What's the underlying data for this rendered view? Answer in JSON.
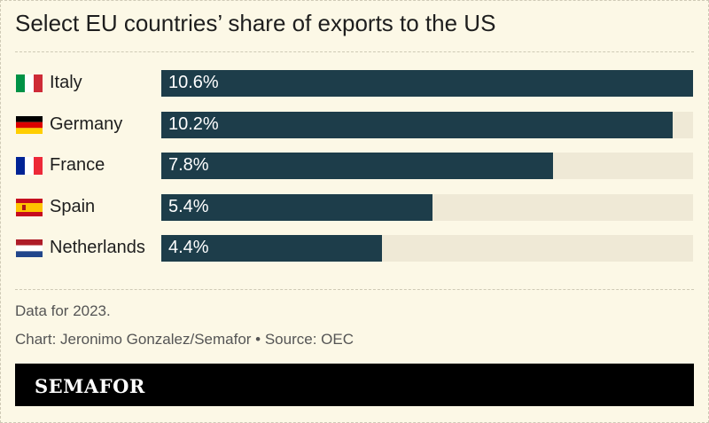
{
  "chart_data": {
    "type": "bar",
    "orientation": "horizontal",
    "title": "Select EU countries’ share of exports to the US",
    "categories": [
      "Italy",
      "Germany",
      "France",
      "Spain",
      "Netherlands"
    ],
    "values": [
      10.6,
      10.2,
      7.8,
      5.4,
      4.4
    ],
    "value_labels": [
      "10.6%",
      "10.2%",
      "7.8%",
      "5.4%",
      "4.4%"
    ],
    "flag_icons": [
      "italy-flag-icon",
      "germany-flag-icon",
      "france-flag-icon",
      "spain-flag-icon",
      "netherlands-flag-icon"
    ],
    "xlim": [
      0,
      10.6
    ],
    "grid": false,
    "legend": "none",
    "bar_color": "#1d3d4a",
    "track_color": "#efe9d6"
  },
  "footer": {
    "note": "Data for 2023.",
    "credit": "Chart: Jeronimo Gonzalez/Semafor • Source: OEC",
    "brand": "SEMAFOR"
  },
  "colors": {
    "background": "#fcf8e6",
    "brand_bar": "#000000"
  }
}
